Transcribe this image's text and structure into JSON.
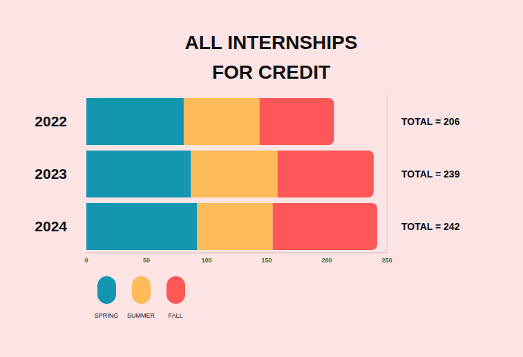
{
  "chart_data": {
    "type": "bar",
    "title": "ALL INTERNSHIPS\nFOR CREDIT",
    "orientation": "horizontal",
    "stacked": true,
    "grid": false,
    "legend": "lower left",
    "categories": [
      "2022",
      "2023",
      "2024"
    ],
    "series": [
      {
        "name": "SPRING",
        "color": "#1496b0",
        "values": [
          81,
          87,
          92
        ]
      },
      {
        "name": "SUMMER",
        "color": "#fdbb5a",
        "values": [
          63,
          72,
          63
        ]
      },
      {
        "name": "FALL",
        "color": "#fe5757",
        "values": [
          62,
          80,
          87
        ]
      }
    ],
    "xlim": [
      0,
      250
    ],
    "xticks": [
      0,
      50,
      100,
      150,
      200,
      250
    ],
    "annotations": [
      "TOTAL = 206",
      "TOTAL = 239",
      "TOTAL = 242"
    ]
  }
}
